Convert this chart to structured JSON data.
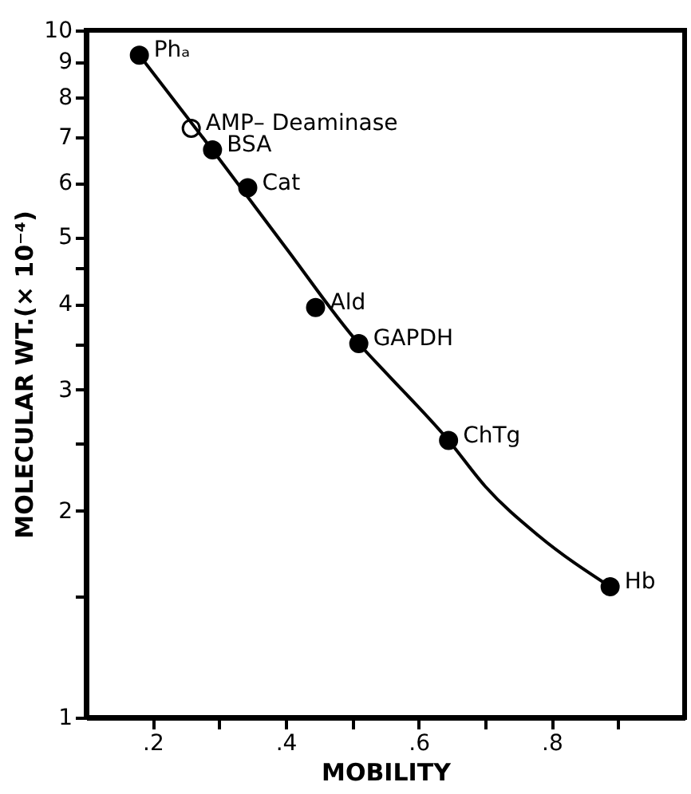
{
  "chart_data": {
    "type": "scatter",
    "xlabel": "MOBILITY",
    "ylabel": "MOLECULAR WT.(× 10⁻⁴)",
    "xlim": [
      0.1,
      1.0
    ],
    "ylim": [
      1,
      10
    ],
    "log": "y",
    "grid": false,
    "marker": "circle",
    "xticks": [
      {
        "value": 0.2,
        "label": ".2"
      },
      {
        "value": 0.3,
        "label": null
      },
      {
        "value": 0.4,
        "label": ".4"
      },
      {
        "value": 0.5,
        "label": null
      },
      {
        "value": 0.6,
        "label": ".6"
      },
      {
        "value": 0.7,
        "label": null
      },
      {
        "value": 0.8,
        "label": ".8"
      },
      {
        "value": 0.9,
        "label": null
      }
    ],
    "yticks": [
      1,
      {
        "value": 1.5,
        "label": null
      },
      2,
      {
        "value": 2.5,
        "label": null
      },
      3,
      {
        "value": 3.5,
        "label": null
      },
      4,
      {
        "value": 4.5,
        "label": null
      },
      5,
      6,
      7,
      8,
      9,
      10
    ],
    "series": [
      {
        "color": "#000000",
        "x": [
          0.18,
          0.29,
          0.343,
          0.445,
          0.51,
          0.645,
          0.888
        ],
        "values": [
          9.2,
          6.7,
          5.9,
          3.95,
          3.5,
          2.53,
          1.55
        ]
      },
      {
        "color": "#ffffff",
        "x": [
          0.258
        ],
        "values": [
          7.2
        ]
      },
      {
        "type": "line",
        "marker": "none",
        "line_style": "solid",
        "color": "#000000",
        "x": [
          0.18,
          0.3,
          0.4,
          0.51,
          0.55,
          0.645,
          0.7,
          0.78,
          0.888
        ],
        "values": [
          9.2,
          6.5,
          4.83,
          3.5,
          3.18,
          2.53,
          2.17,
          1.84,
          1.55
        ]
      }
    ],
    "annotations": [
      {
        "text": "Phₐ",
        "x": 0.18,
        "y": 9.2
      },
      {
        "text": "AMP– Deaminase",
        "x": 0.258,
        "y": 7.2
      },
      {
        "text": "BSA",
        "x": 0.29,
        "y": 6.7
      },
      {
        "text": "Cat",
        "x": 0.343,
        "y": 5.9
      },
      {
        "text": "Ald",
        "x": 0.445,
        "y": 3.95
      },
      {
        "text": "GAPDH",
        "x": 0.51,
        "y": 3.5
      },
      {
        "text": "ChTg",
        "x": 0.645,
        "y": 2.53
      },
      {
        "text": "Hb",
        "x": 0.888,
        "y": 1.55
      }
    ]
  }
}
